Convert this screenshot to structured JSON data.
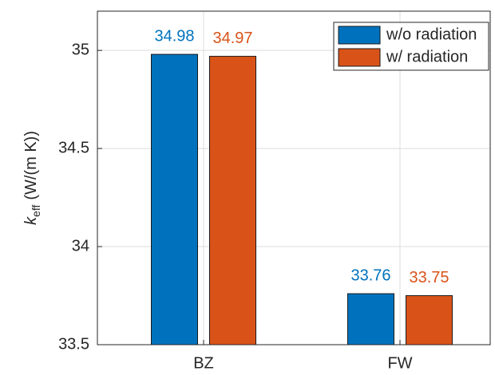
{
  "chart_data": {
    "type": "bar",
    "ylabel": {
      "symbol": "k",
      "subscript": "eff",
      "unit": "(W/(m K))"
    },
    "categories": [
      "BZ",
      "FW"
    ],
    "series": [
      {
        "name": "w/o radiation",
        "color": "#0072bd",
        "values": [
          34.98,
          33.76
        ]
      },
      {
        "name": "w/ radiation",
        "color": "#d95319",
        "values": [
          34.97,
          33.75
        ]
      }
    ],
    "ylim": [
      33.5,
      35.2
    ],
    "yticks": [
      33.5,
      34,
      34.5,
      35
    ],
    "grid": true,
    "legend": "upper right"
  }
}
